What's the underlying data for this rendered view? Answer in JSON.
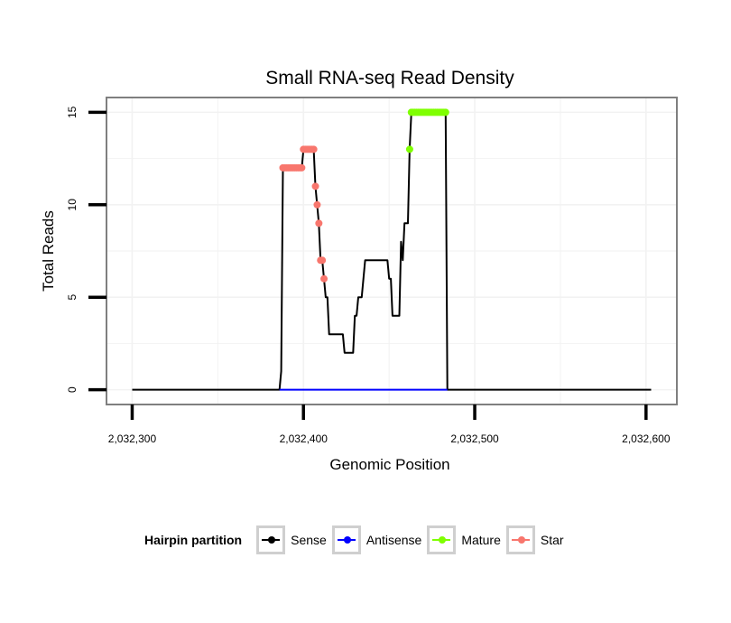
{
  "chart_data": {
    "type": "line",
    "title": "Small RNA-seq Read Density",
    "xlabel": "Genomic Position",
    "ylabel": "Total Reads",
    "xlim": [
      2032285,
      2032618
    ],
    "ylim": [
      -0.8,
      15.8
    ],
    "x_ticks": [
      2032300,
      2032400,
      2032500,
      2032600
    ],
    "x_tick_labels": [
      "2,032,300",
      "2,032,400",
      "2,032,500",
      "2,032,600"
    ],
    "y_ticks": [
      0,
      5,
      10,
      15
    ],
    "y_tick_labels": [
      "0",
      "5",
      "10",
      "15"
    ],
    "grid": true,
    "legend_title": "Hairpin partition",
    "series": [
      {
        "name": "Sense",
        "color": "#000000",
        "marker": "line",
        "points": [
          [
            2032300,
            0
          ],
          [
            2032386,
            0
          ],
          [
            2032387,
            1
          ],
          [
            2032388,
            12
          ],
          [
            2032399,
            12
          ],
          [
            2032400,
            13
          ],
          [
            2032406,
            13
          ],
          [
            2032407,
            11
          ],
          [
            2032408,
            10
          ],
          [
            2032409,
            9
          ],
          [
            2032410,
            7
          ],
          [
            2032411,
            7
          ],
          [
            2032412,
            6
          ],
          [
            2032413,
            5
          ],
          [
            2032414,
            5
          ],
          [
            2032415,
            3
          ],
          [
            2032423,
            3
          ],
          [
            2032424,
            2
          ],
          [
            2032429,
            2
          ],
          [
            2032430,
            4
          ],
          [
            2032431,
            4
          ],
          [
            2032432,
            5
          ],
          [
            2032434,
            5
          ],
          [
            2032436,
            7
          ],
          [
            2032449,
            7
          ],
          [
            2032450,
            6
          ],
          [
            2032451,
            6
          ],
          [
            2032452,
            4
          ],
          [
            2032456,
            4
          ],
          [
            2032457,
            8
          ],
          [
            2032458,
            7
          ],
          [
            2032459,
            9
          ],
          [
            2032461,
            9
          ],
          [
            2032462,
            13
          ],
          [
            2032463,
            15
          ],
          [
            2032482,
            15
          ],
          [
            2032483,
            15
          ],
          [
            2032484,
            0
          ],
          [
            2032603,
            0
          ]
        ]
      },
      {
        "name": "Antisense",
        "color": "#0000ff",
        "marker": "line",
        "points": [
          [
            2032386,
            0
          ],
          [
            2032484,
            0
          ]
        ]
      },
      {
        "name": "Mature",
        "color": "#7fff00",
        "marker": "points",
        "points": [
          [
            2032462,
            13
          ],
          [
            2032463,
            15
          ],
          [
            2032464,
            15
          ],
          [
            2032465,
            15
          ],
          [
            2032466,
            15
          ],
          [
            2032467,
            15
          ],
          [
            2032468,
            15
          ],
          [
            2032469,
            15
          ],
          [
            2032470,
            15
          ],
          [
            2032471,
            15
          ],
          [
            2032472,
            15
          ],
          [
            2032473,
            15
          ],
          [
            2032474,
            15
          ],
          [
            2032475,
            15
          ],
          [
            2032476,
            15
          ],
          [
            2032477,
            15
          ],
          [
            2032478,
            15
          ],
          [
            2032479,
            15
          ],
          [
            2032480,
            15
          ],
          [
            2032481,
            15
          ],
          [
            2032482,
            15
          ],
          [
            2032483,
            15
          ]
        ]
      },
      {
        "name": "Star",
        "color": "#f8766d",
        "marker": "points",
        "points": [
          [
            2032388,
            12
          ],
          [
            2032389,
            12
          ],
          [
            2032390,
            12
          ],
          [
            2032391,
            12
          ],
          [
            2032392,
            12
          ],
          [
            2032393,
            12
          ],
          [
            2032394,
            12
          ],
          [
            2032395,
            12
          ],
          [
            2032396,
            12
          ],
          [
            2032397,
            12
          ],
          [
            2032398,
            12
          ],
          [
            2032399,
            12
          ],
          [
            2032400,
            13
          ],
          [
            2032401,
            13
          ],
          [
            2032402,
            13
          ],
          [
            2032403,
            13
          ],
          [
            2032404,
            13
          ],
          [
            2032405,
            13
          ],
          [
            2032406,
            13
          ],
          [
            2032407,
            11
          ],
          [
            2032408,
            10
          ],
          [
            2032409,
            9
          ],
          [
            2032410,
            7
          ],
          [
            2032411,
            7
          ],
          [
            2032412,
            6
          ]
        ]
      }
    ]
  }
}
